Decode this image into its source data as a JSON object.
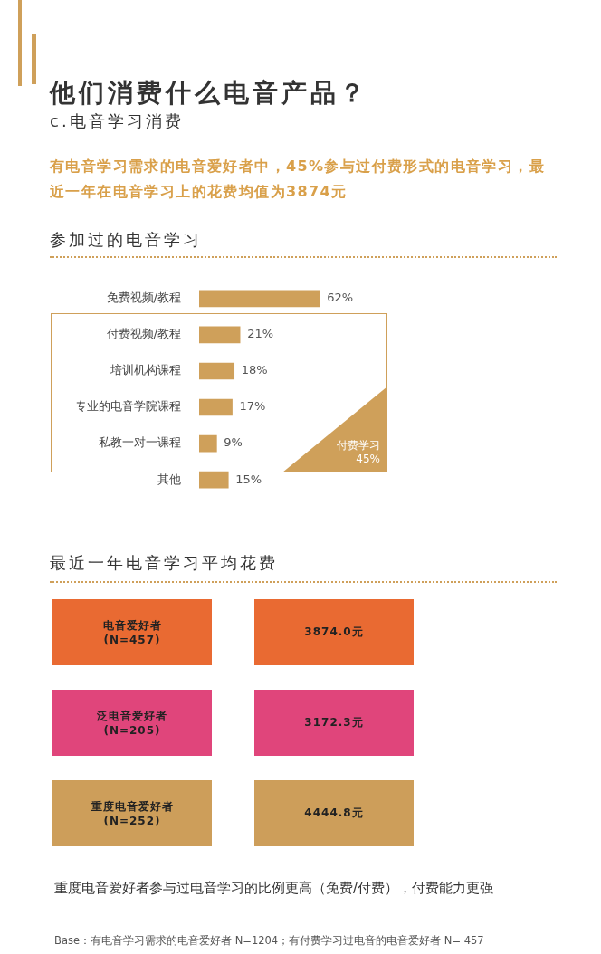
{
  "chart_data": [
    {
      "type": "other",
      "title": "他们消费什么电音产品？",
      "subtitle": "c.电音学习消费",
      "annotations": [
        "有电音学习需求的电音爱好者中，45%参与过付费形式的电音学习，最近一年在电音学习上的花费均值为3874元"
      ]
    },
    {
      "type": "bar",
      "orientation": "horizontal",
      "title": "参加过的电音学习",
      "categories": [
        "免费视频/教程",
        "付费视频/教程",
        "培训机构课程",
        "专业的电音学院课程",
        "私教一对一课程",
        "其他"
      ],
      "values": [
        62,
        21,
        18,
        17,
        9,
        15
      ],
      "value_labels": [
        "62%",
        "21%",
        "18%",
        "17%",
        "9%",
        "15%"
      ],
      "color": "#cfa05a",
      "tick_labels": "y",
      "annotations": [
        "付费学习\n45%"
      ]
    },
    {
      "type": "other",
      "title": "最近一年电音学习平均花费",
      "categories": [
        "电音爱好者\n(N=457)",
        "泛电音爱好者\n(N=205)",
        "重度电音爱好者\n(N=252)"
      ],
      "value_labels": [
        "3874.0元",
        "3172.3元",
        "4444.8元"
      ],
      "colors": [
        "#e96a32",
        "#e0457b",
        "#cd9e5a"
      ],
      "annotations": [
        "重度电音爱好者参与过电音学习的比例更高（免费/付费），付费能力更强",
        "Base：有电音学习需求的电音爱好者 N=1204；有付费学习过电音的电音爱好者 N= 457"
      ]
    }
  ]
}
